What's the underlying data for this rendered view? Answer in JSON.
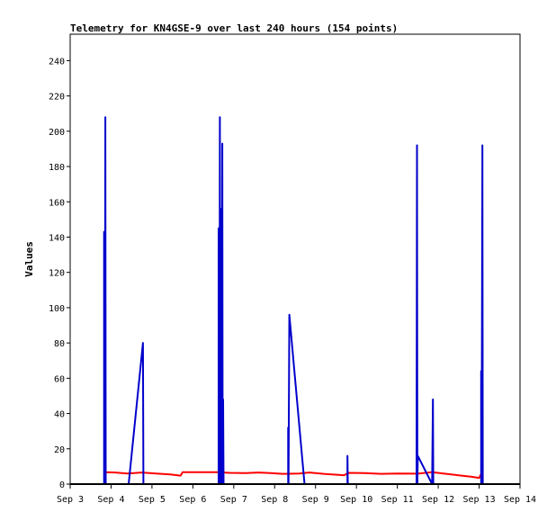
{
  "chart_data": {
    "type": "line",
    "title": "Telemetry for KN4GSE-9 over last 240 hours (154 points)",
    "ylabel": "Values",
    "xlabel": "",
    "ylim": [
      0,
      255
    ],
    "yticks": [
      0,
      20,
      40,
      60,
      80,
      100,
      120,
      140,
      160,
      180,
      200,
      220,
      240
    ],
    "xlim": [
      3.0,
      14.0
    ],
    "xticks": [
      {
        "x": 3,
        "label": "Sep 3"
      },
      {
        "x": 4,
        "label": "Sep 4"
      },
      {
        "x": 5,
        "label": "Sep 5"
      },
      {
        "x": 6,
        "label": "Sep 6"
      },
      {
        "x": 7,
        "label": "Sep 7"
      },
      {
        "x": 8,
        "label": "Sep 8"
      },
      {
        "x": 9,
        "label": "Sep 9"
      },
      {
        "x": 10,
        "label": "Sep 10"
      },
      {
        "x": 11,
        "label": "Sep 11"
      },
      {
        "x": 12,
        "label": "Sep 12"
      },
      {
        "x": 13,
        "label": "Sep 13"
      },
      {
        "x": 14,
        "label": "Sep 14"
      }
    ],
    "grid": false,
    "legend": false,
    "series": [
      {
        "color": "#ff0000",
        "points": [
          [
            3.85,
            6.8
          ],
          [
            4.1,
            6.6
          ],
          [
            4.4,
            6.0
          ],
          [
            4.75,
            6.6
          ],
          [
            5.1,
            6.0
          ],
          [
            5.45,
            5.5
          ],
          [
            5.7,
            4.8
          ],
          [
            5.75,
            6.8
          ],
          [
            6.1,
            6.8
          ],
          [
            6.6,
            6.8
          ],
          [
            6.9,
            6.4
          ],
          [
            7.3,
            6.2
          ],
          [
            7.6,
            6.6
          ],
          [
            7.9,
            6.2
          ],
          [
            8.2,
            5.8
          ],
          [
            8.6,
            6.0
          ],
          [
            8.85,
            6.6
          ],
          [
            9.2,
            5.8
          ],
          [
            9.7,
            5.0
          ],
          [
            9.8,
            6.4
          ],
          [
            10.2,
            6.2
          ],
          [
            10.6,
            5.8
          ],
          [
            11.0,
            6.0
          ],
          [
            11.5,
            5.9
          ],
          [
            11.85,
            6.8
          ],
          [
            12.2,
            5.8
          ],
          [
            12.5,
            5.0
          ],
          [
            12.8,
            4.2
          ],
          [
            13.0,
            3.5
          ],
          [
            13.08,
            7.0
          ]
        ]
      },
      {
        "color": "#0000cc",
        "points": [
          [
            3.83,
            0
          ],
          [
            3.83,
            143
          ],
          [
            3.85,
            0
          ],
          [
            3.86,
            208
          ],
          [
            3.87,
            0
          ],
          [
            4.43,
            0
          ],
          [
            4.78,
            80
          ],
          [
            4.79,
            0
          ],
          [
            6.63,
            0
          ],
          [
            6.63,
            145
          ],
          [
            6.65,
            0
          ],
          [
            6.66,
            208
          ],
          [
            6.67,
            0
          ],
          [
            6.68,
            156
          ],
          [
            6.69,
            0
          ],
          [
            6.7,
            145
          ],
          [
            6.71,
            0
          ],
          [
            6.72,
            193
          ],
          [
            6.73,
            0
          ],
          [
            6.74,
            48
          ],
          [
            6.75,
            0
          ],
          [
            8.33,
            0
          ],
          [
            8.33,
            32
          ],
          [
            8.34,
            0
          ],
          [
            8.36,
            96
          ],
          [
            8.73,
            0
          ],
          [
            9.78,
            0
          ],
          [
            9.78,
            16
          ],
          [
            9.79,
            0
          ],
          [
            11.47,
            0
          ],
          [
            11.48,
            192
          ],
          [
            11.49,
            0
          ],
          [
            11.5,
            16
          ],
          [
            11.85,
            0
          ],
          [
            11.87,
            48
          ],
          [
            11.88,
            0
          ],
          [
            13.05,
            0
          ],
          [
            13.05,
            64
          ],
          [
            13.06,
            0
          ],
          [
            13.08,
            192
          ],
          [
            13.09,
            0
          ]
        ]
      }
    ]
  }
}
